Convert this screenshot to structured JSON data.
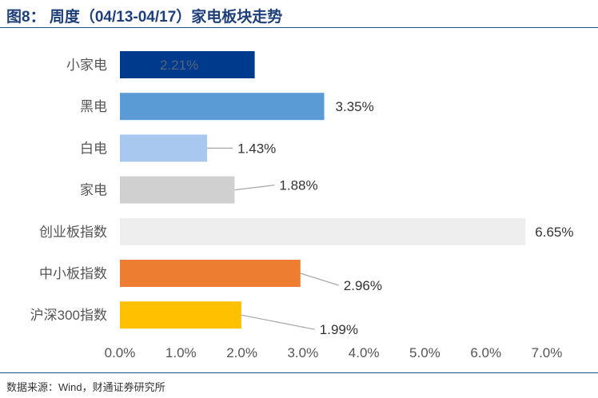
{
  "header": {
    "title": "图8：  周度（04/13-04/17）家电板块走势"
  },
  "footer": {
    "source": "数据来源：Wind，财通证券研究所"
  },
  "chart_data": {
    "type": "bar",
    "orientation": "horizontal",
    "categories": [
      "小家电",
      "黑电",
      "白电",
      "家电",
      "创业板指数",
      "中小板指数",
      "沪深300指数"
    ],
    "values": [
      2.21,
      3.35,
      1.43,
      1.88,
      6.65,
      2.96,
      1.99
    ],
    "value_labels": [
      "2.21%",
      "3.35%",
      "1.43%",
      "1.88%",
      "6.65%",
      "2.96%",
      "1.99%"
    ],
    "colors": [
      "#003a8c",
      "#5b9bd5",
      "#a9c8ef",
      "#d0d0d0",
      "#eeeeee",
      "#ed7d31",
      "#ffc000"
    ],
    "xlim": [
      0,
      7
    ],
    "xticks": [
      0,
      1,
      2,
      3,
      4,
      5,
      6,
      7
    ],
    "xtick_labels": [
      "0.0%",
      "1.0%",
      "2.0%",
      "3.0%",
      "4.0%",
      "5.0%",
      "6.0%",
      "7.0%"
    ],
    "grid": false,
    "legend": "none"
  }
}
